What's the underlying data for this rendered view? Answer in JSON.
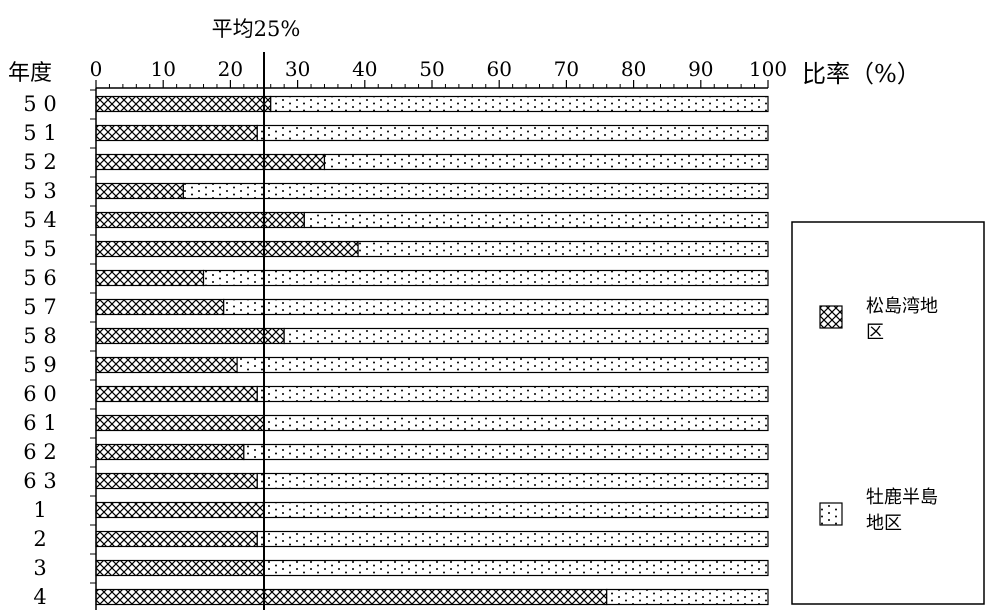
{
  "chart_data": {
    "type": "bar",
    "stacked": true,
    "orientation": "horizontal",
    "title": "平均25%",
    "ylabel": "年度",
    "xlabel": "比率（%）",
    "xlim": [
      0,
      100
    ],
    "x_ticks": [
      "0",
      "10",
      "20",
      "30",
      "40",
      "50",
      "60",
      "70",
      "80",
      "90",
      "100"
    ],
    "reference_line": {
      "value": 25
    },
    "categories": [
      "5 0",
      "5 1",
      "5 2",
      "5 3",
      "5 4",
      "5 5",
      "5 6",
      "5 7",
      "5 8",
      "5 9",
      "6 0",
      "6 1",
      "6 2",
      "6 3",
      "1",
      "2",
      "3",
      "4"
    ],
    "series": [
      {
        "name": "松島湾地区",
        "pattern": "crosshatch",
        "values": [
          26,
          24,
          34,
          13,
          31,
          39,
          16,
          19,
          28,
          21,
          24,
          25,
          22,
          24,
          25,
          24,
          25,
          76
        ]
      },
      {
        "name": "牡鹿半島地区",
        "pattern": "dots",
        "values": [
          74,
          76,
          66,
          87,
          69,
          61,
          84,
          81,
          72,
          79,
          76,
          75,
          78,
          76,
          75,
          76,
          75,
          24
        ]
      }
    ],
    "legend": {
      "position": "right",
      "entries": [
        "松島湾地区",
        "牡鹿半島地区"
      ]
    },
    "grid": false
  },
  "colors": {
    "ink": "#000000",
    "background": "#ffffff"
  }
}
